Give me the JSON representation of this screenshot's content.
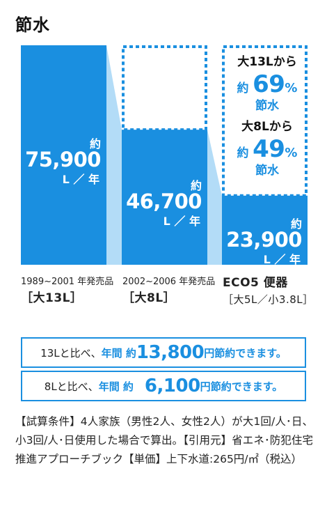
{
  "title": "節水",
  "chart_data": {
    "type": "bar",
    "unit": "L／年",
    "series": [
      {
        "values": [
          75900,
          46700,
          23900
        ]
      }
    ],
    "bars": [
      {
        "value": 75900,
        "prefix": "約",
        "value_label": "75,900",
        "unit": "L ／ 年",
        "cat_line1": "1989~2001 年発売品",
        "cat_line2": "［大13L］"
      },
      {
        "value": 46700,
        "prefix": "約",
        "value_label": "46,700",
        "unit": "L ／ 年",
        "cat_line1": "2002~2006 年発売品",
        "cat_line2": "［大8L］"
      },
      {
        "value": 23900,
        "prefix": "約",
        "value_label": "23,900",
        "unit": "L ／ 年",
        "cat_line1": "ECO5 便器",
        "cat_line2": "［大5L／小3.8L］"
      }
    ],
    "reference_outlines": [
      75900,
      75900
    ],
    "callouts": [
      {
        "from": "大13Lから",
        "prefix": "約",
        "pct": "69",
        "sign": "%",
        "save": "節水"
      },
      {
        "from": "大8Lから",
        "prefix": "約",
        "pct": "49",
        "sign": "%",
        "save": "節水"
      }
    ],
    "ylim": [
      0,
      75900
    ]
  },
  "colors": {
    "bar": "#1a8fe0",
    "connector": "#b3dcf7",
    "accent": "#1a8fe0"
  },
  "comparisons": [
    {
      "lead": "13Lと比べ、",
      "label": "年間 約",
      "amount": "13,800",
      "suffix": "円",
      "tail": "節約できます。"
    },
    {
      "lead": "8Lと比べ、",
      "label": "年間 約",
      "amount": "6,100",
      "suffix": "円",
      "tail": "節約できます。"
    }
  ],
  "note": "【試算条件】4人家族（男性2人、女性2人）が大1回/人･日、小3回/人･日使用した場合で算出。【引用元】省エネ･防犯住宅推進アプローチブック【単価】上下水道:265円/㎡（税込）"
}
